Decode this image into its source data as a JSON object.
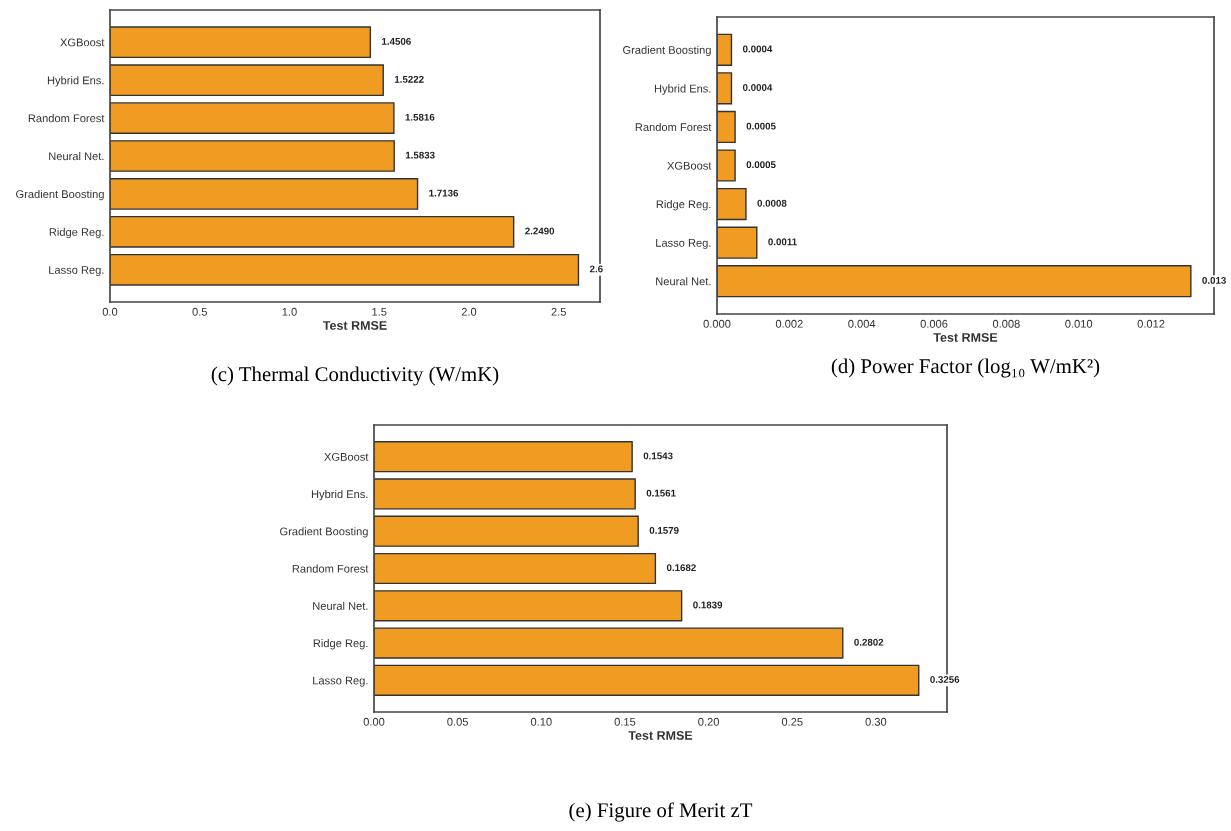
{
  "chart_data": [
    {
      "type": "bar",
      "orientation": "horizontal",
      "title": "(c) Thermal Conductivity (W/mK)",
      "xlabel": "Test RMSE",
      "categories": [
        "XGBoost",
        "Hybrid Ens.",
        "Random Forest",
        "Neural Net.",
        "Gradient Boosting",
        "Ridge Reg.",
        "Lasso Reg."
      ],
      "values": [
        1.4506,
        1.5222,
        1.5816,
        1.5833,
        1.7136,
        2.249,
        2.61
      ],
      "value_labels": [
        "1.4506",
        "1.5222",
        "1.5816",
        "1.5833",
        "1.7136",
        "2.2490",
        "2.6"
      ],
      "color": "#f09c22",
      "xlim": [
        0,
        2.73
      ],
      "xticks": [
        {
          "value": 0,
          "label": "0.0"
        },
        0.5,
        {
          "value": 1,
          "label": "1.0"
        },
        1.5,
        {
          "value": 2,
          "label": "2.0"
        },
        2.5
      ],
      "grid": false
    },
    {
      "type": "bar",
      "orientation": "horizontal",
      "title": "(d) Power Factor (log₁₀ W/mK²)",
      "xlabel": "Test RMSE",
      "categories": [
        "Gradient Boosting",
        "Hybrid Ens.",
        "Random Forest",
        "XGBoost",
        "Ridge Reg.",
        "Lasso Reg.",
        "Neural Net."
      ],
      "values": [
        0.0004,
        0.0004,
        0.0005,
        0.0005,
        0.0008,
        0.0011,
        0.0131
      ],
      "value_labels": [
        "0.0004",
        "0.0004",
        "0.0005",
        "0.0005",
        "0.0008",
        "0.0011",
        "0.013"
      ],
      "color": "#f09c22",
      "xlim": [
        0,
        0.01374
      ],
      "xticks": [
        {
          "value": 0,
          "label": "0.000"
        },
        0.002,
        0.004,
        0.006,
        0.008,
        {
          "value": 0.01,
          "label": "0.010"
        },
        0.012
      ],
      "grid": false
    },
    {
      "type": "bar",
      "orientation": "horizontal",
      "title": "(e) Figure of Merit zT",
      "xlabel": "Test RMSE",
      "categories": [
        "XGBoost",
        "Hybrid Ens.",
        "Gradient Boosting",
        "Random Forest",
        "Neural Net.",
        "Ridge Reg.",
        "Lasso Reg."
      ],
      "values": [
        0.1543,
        0.1561,
        0.1579,
        0.1682,
        0.1839,
        0.2802,
        0.3256
      ],
      "value_labels": [
        "0.1543",
        "0.1561",
        "0.1579",
        "0.1682",
        "0.1839",
        "0.2802",
        "0.3256"
      ],
      "color": "#f09c22",
      "xlim": [
        0,
        0.3425
      ],
      "xticks": [
        {
          "value": 0,
          "label": "0.00"
        },
        0.05,
        {
          "value": 0.1,
          "label": "0.10"
        },
        0.15,
        {
          "value": 0.2,
          "label": "0.20"
        },
        0.25,
        {
          "value": 0.3,
          "label": "0.30"
        }
      ],
      "grid": false
    }
  ]
}
